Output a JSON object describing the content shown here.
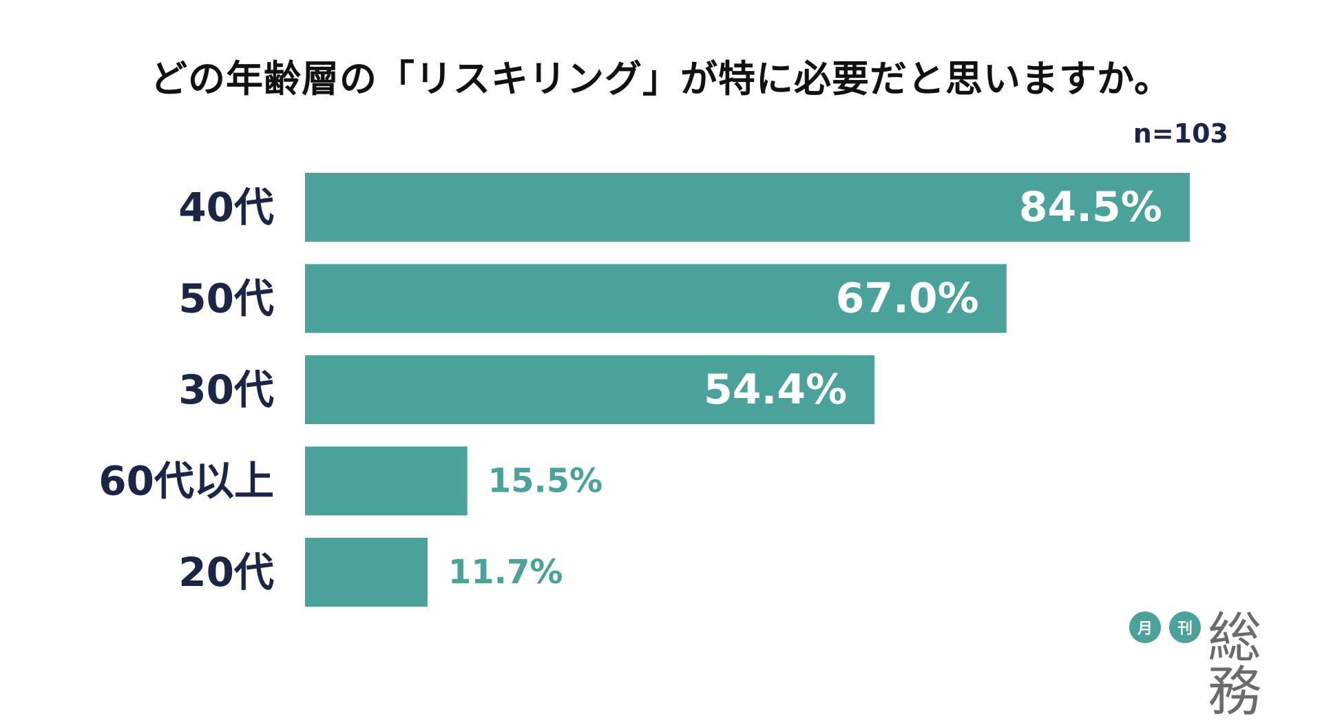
{
  "chart_data": {
    "type": "bar",
    "orientation": "horizontal",
    "title": "どの年齢層の「リスキリング」が特に必要だと思いますか。",
    "sample_size": "n=103",
    "categories": [
      "40代",
      "50代",
      "30代",
      "60代以上",
      "20代"
    ],
    "values": [
      84.5,
      67.0,
      54.4,
      15.5,
      11.7
    ],
    "value_labels": [
      "84.5%",
      "67.0%",
      "54.4%",
      "15.5%",
      "11.7%"
    ],
    "xlim": [
      0,
      100
    ],
    "grid": false,
    "legend": "none",
    "colors": {
      "bar": "#4aa29a",
      "category_label": "#1c2546",
      "label_inside": "#ffffff",
      "label_outside": "#4aa29a",
      "title": "#111111"
    }
  },
  "logo": {
    "circle_1": "月",
    "circle_2": "刊",
    "main": "総務",
    "circle_color": "#4aa29a"
  }
}
